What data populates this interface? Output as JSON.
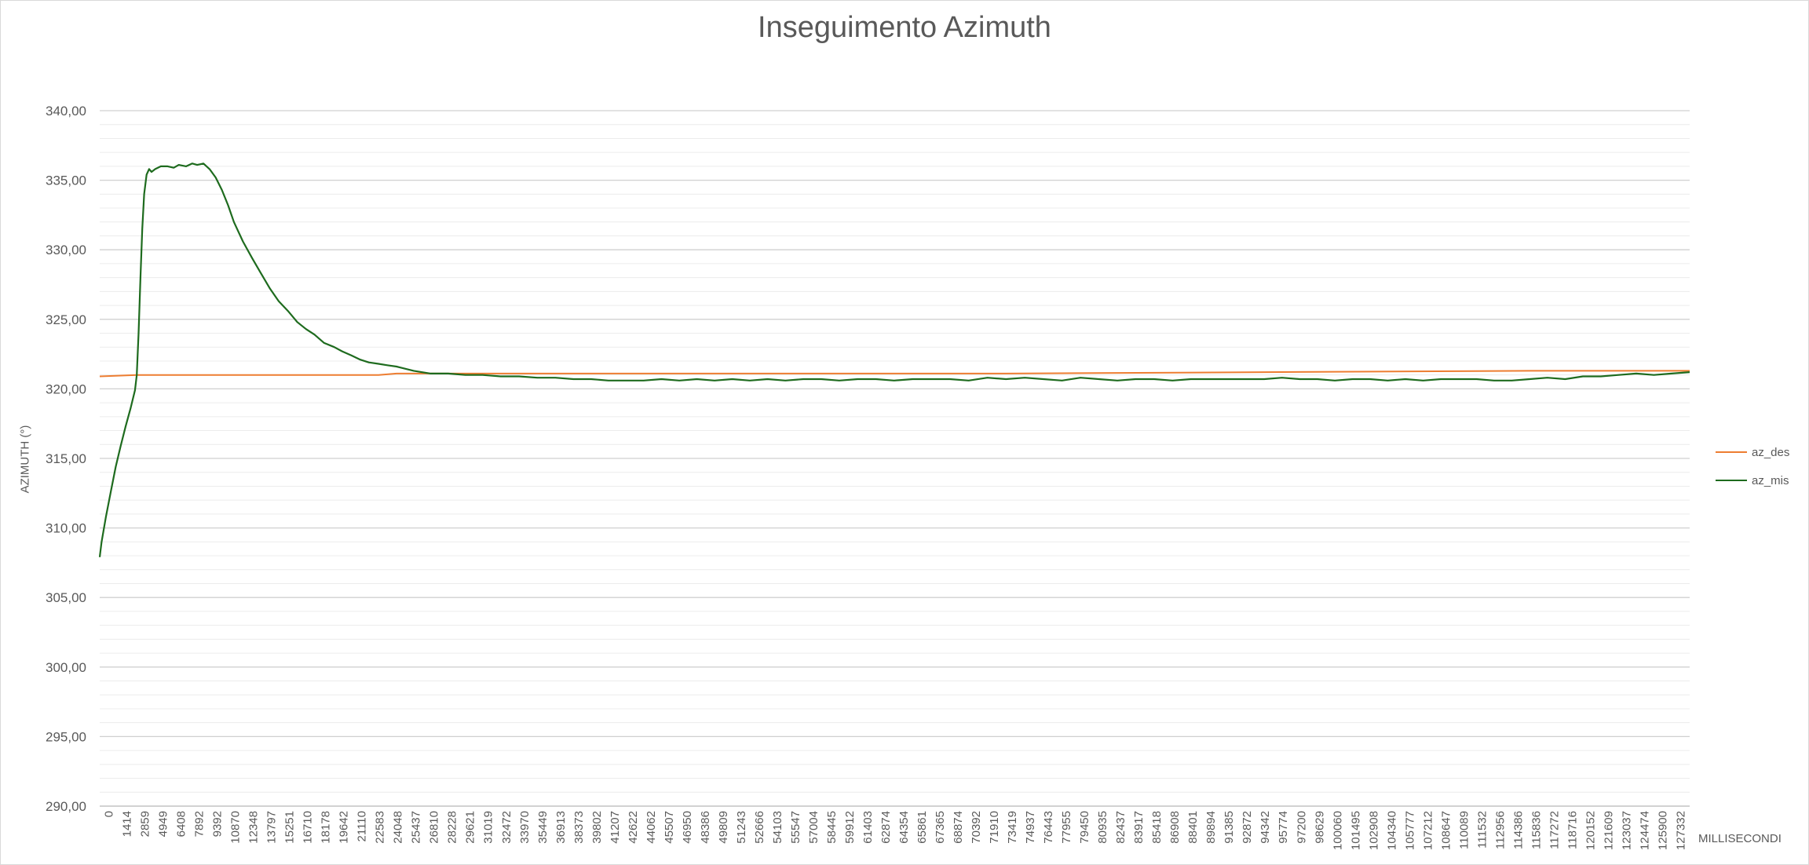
{
  "chart_data": {
    "type": "line",
    "title": "Inseguimento Azimuth",
    "xlabel": "MILLISECONDI",
    "ylabel": "AZIMUTH (°)",
    "ylim": [
      290,
      340
    ],
    "y_ticks": [
      "290,00",
      "295,00",
      "300,00",
      "305,00",
      "310,00",
      "315,00",
      "320,00",
      "325,00",
      "330,00",
      "335,00",
      "340,00"
    ],
    "grid": true,
    "legend_position": "right",
    "x_tick_labels": [
      "0",
      "1414",
      "2859",
      "4949",
      "6408",
      "7892",
      "9392",
      "10870",
      "12348",
      "13797",
      "15251",
      "16710",
      "18178",
      "19642",
      "21110",
      "22583",
      "24048",
      "25437",
      "26810",
      "28228",
      "29621",
      "31019",
      "32472",
      "33970",
      "35449",
      "36913",
      "38373",
      "39802",
      "41207",
      "42622",
      "44062",
      "45507",
      "46950",
      "48386",
      "49809",
      "51243",
      "52666",
      "54103",
      "55547",
      "57004",
      "58445",
      "59912",
      "61403",
      "62874",
      "64354",
      "65861",
      "67365",
      "68874",
      "70392",
      "71910",
      "73419",
      "74937",
      "76443",
      "77955",
      "79450",
      "80935",
      "82437",
      "83917",
      "85418",
      "86908",
      "88401",
      "89894",
      "91385",
      "92872",
      "94342",
      "95774",
      "97200",
      "98629",
      "100060",
      "101495",
      "102908",
      "104340",
      "105777",
      "107212",
      "108647",
      "110089",
      "111532",
      "112956",
      "114386",
      "115836",
      "117272",
      "118716",
      "120152",
      "121609",
      "123037",
      "124474",
      "125900",
      "127332"
    ],
    "x_range": [
      0,
      128800
    ],
    "series": [
      {
        "name": "az_des",
        "color": "#ed7d31",
        "x": [
          0,
          3000,
          22583,
          24048,
          45507,
          73419,
          94342,
          116000,
          128800
        ],
        "y": [
          320.9,
          321.0,
          321.0,
          321.1,
          321.1,
          321.1,
          321.2,
          321.3,
          321.3
        ]
      },
      {
        "name": "az_mis",
        "color": "#1e6b1e",
        "x": [
          0,
          150,
          500,
          900,
          1300,
          1700,
          2100,
          2500,
          2859,
          3000,
          3150,
          3300,
          3450,
          3600,
          3800,
          4000,
          4200,
          4500,
          4949,
          5500,
          6000,
          6408,
          7000,
          7500,
          7892,
          8400,
          8900,
          9392,
          9900,
          10400,
          10870,
          11600,
          12348,
          13000,
          13797,
          14500,
          15251,
          16000,
          16710,
          17400,
          18178,
          19000,
          19642,
          20400,
          21110,
          21800,
          22583,
          23300,
          24048,
          25437,
          26810,
          28228,
          29621,
          31019,
          32472,
          33970,
          35449,
          36913,
          38373,
          39802,
          41207,
          42622,
          44062,
          45507,
          46950,
          48386,
          49809,
          51243,
          52666,
          54103,
          55547,
          57004,
          58445,
          59912,
          61403,
          62874,
          64354,
          65861,
          67365,
          68874,
          70392,
          71910,
          73419,
          74937,
          76443,
          77955,
          79450,
          80935,
          82437,
          83917,
          85418,
          86908,
          88401,
          89894,
          91385,
          92872,
          94342,
          95774,
          97200,
          98629,
          100060,
          101495,
          102908,
          104340,
          105777,
          107212,
          108647,
          110089,
          111532,
          112956,
          114386,
          115836,
          117272,
          118716,
          120152,
          121609,
          123037,
          124474,
          125900,
          127332,
          128800
        ],
        "y": [
          307.9,
          309.0,
          310.8,
          312.6,
          314.4,
          315.9,
          317.3,
          318.6,
          319.9,
          321.0,
          324.0,
          328.0,
          331.5,
          334.0,
          335.4,
          335.8,
          335.6,
          335.8,
          336.0,
          336.0,
          335.9,
          336.1,
          336.0,
          336.2,
          336.1,
          336.2,
          335.8,
          335.2,
          334.3,
          333.2,
          332.0,
          330.6,
          329.4,
          328.4,
          327.2,
          326.3,
          325.6,
          324.8,
          324.3,
          323.9,
          323.3,
          323.0,
          322.7,
          322.4,
          322.1,
          321.9,
          321.8,
          321.7,
          321.6,
          321.3,
          321.1,
          321.1,
          321.0,
          321.0,
          320.9,
          320.9,
          320.8,
          320.8,
          320.7,
          320.7,
          320.6,
          320.6,
          320.6,
          320.7,
          320.6,
          320.7,
          320.6,
          320.7,
          320.6,
          320.7,
          320.6,
          320.7,
          320.7,
          320.6,
          320.7,
          320.7,
          320.6,
          320.7,
          320.7,
          320.7,
          320.6,
          320.8,
          320.7,
          320.8,
          320.7,
          320.6,
          320.8,
          320.7,
          320.6,
          320.7,
          320.7,
          320.6,
          320.7,
          320.7,
          320.7,
          320.7,
          320.7,
          320.8,
          320.7,
          320.7,
          320.6,
          320.7,
          320.7,
          320.6,
          320.7,
          320.6,
          320.7,
          320.7,
          320.7,
          320.6,
          320.6,
          320.7,
          320.8,
          320.7,
          320.9,
          320.9,
          321.0,
          321.1,
          321.0,
          321.1,
          321.2
        ]
      }
    ]
  }
}
